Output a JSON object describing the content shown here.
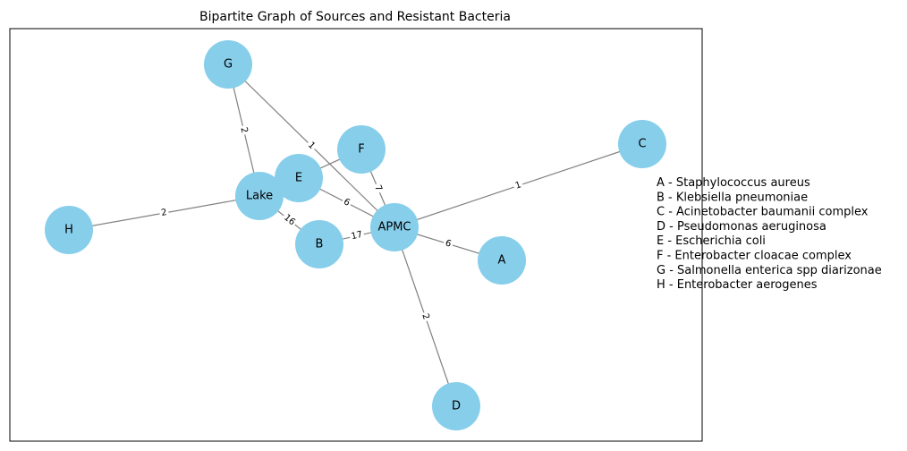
{
  "title": "Bipartite Graph of Sources and Resistant Bacteria",
  "colors": {
    "node": "#87ceeb",
    "edge": "#808080",
    "frame": "#000000"
  },
  "nodes": [
    {
      "id": "G",
      "label": "G"
    },
    {
      "id": "F",
      "label": "F"
    },
    {
      "id": "C",
      "label": "C"
    },
    {
      "id": "E",
      "label": "E"
    },
    {
      "id": "Lake",
      "label": "Lake"
    },
    {
      "id": "H",
      "label": "H"
    },
    {
      "id": "APMC",
      "label": "APMC"
    },
    {
      "id": "B",
      "label": "B"
    },
    {
      "id": "A",
      "label": "A"
    },
    {
      "id": "D",
      "label": "D"
    }
  ],
  "edges": [
    {
      "from": "G",
      "to": "Lake",
      "label": "2"
    },
    {
      "from": "G",
      "to": "APMC",
      "label": "1"
    },
    {
      "from": "F",
      "to": "Lake",
      "label": ""
    },
    {
      "from": "F",
      "to": "APMC",
      "label": "7"
    },
    {
      "from": "H",
      "to": "Lake",
      "label": "2"
    },
    {
      "from": "Lake",
      "to": "B",
      "label": "16"
    },
    {
      "from": "E",
      "to": "APMC",
      "label": "6"
    },
    {
      "from": "B",
      "to": "APMC",
      "label": "17"
    },
    {
      "from": "C",
      "to": "APMC",
      "label": "1"
    },
    {
      "from": "APMC",
      "to": "A",
      "label": "6"
    },
    {
      "from": "APMC",
      "to": "D",
      "label": "2"
    }
  ],
  "legend": [
    "A - Staphylococcus aureus",
    "B - Klebsiella pneumoniae",
    "C - Acinetobacter baumanii complex",
    "D - Pseudomonas aeruginosa",
    "E - Escherichia coli",
    "F - Enterobacter cloacae complex",
    "G - Salmonella enterica spp diarizonae",
    "H - Enterobacter aerogenes"
  ]
}
